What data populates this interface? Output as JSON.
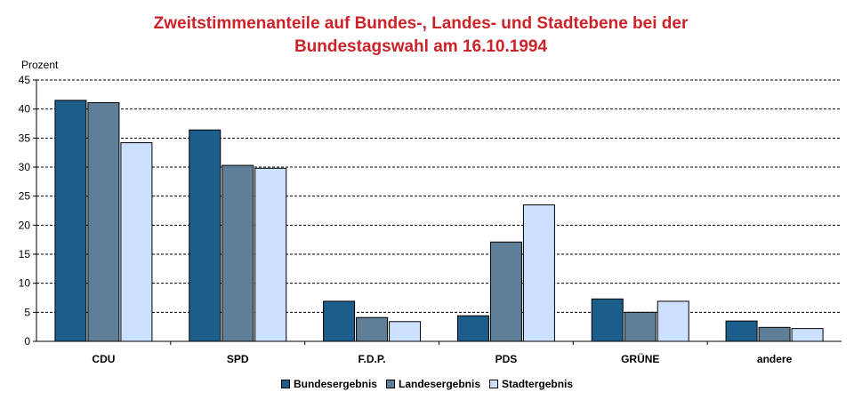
{
  "chart_data": {
    "type": "bar",
    "title": [
      "Zweitstimmenanteile auf Bundes-, Landes- und Stadtebene bei der",
      "Bundestagswahl am 16.10.1994"
    ],
    "ylabel": "Prozent",
    "xlabel": "",
    "ylim": [
      0,
      45
    ],
    "yticks": [
      0,
      5,
      10,
      15,
      20,
      25,
      30,
      35,
      40,
      45
    ],
    "grid": true,
    "legend_position": "bottom",
    "categories": [
      "CDU",
      "SPD",
      "F.D.P.",
      "PDS",
      "GRÜNE",
      "andere"
    ],
    "series": [
      {
        "name": "Bundesergebnis",
        "color": "#1b5e8c",
        "values": [
          41.5,
          36.4,
          6.9,
          4.4,
          7.3,
          3.5
        ]
      },
      {
        "name": "Landesergebnis",
        "color": "#5f7f99",
        "values": [
          41.1,
          30.3,
          4.1,
          17.1,
          5.0,
          2.4
        ]
      },
      {
        "name": "Stadtergebnis",
        "color": "#cce0ff",
        "values": [
          34.2,
          29.8,
          3.4,
          23.5,
          6.9,
          2.2
        ]
      }
    ]
  }
}
